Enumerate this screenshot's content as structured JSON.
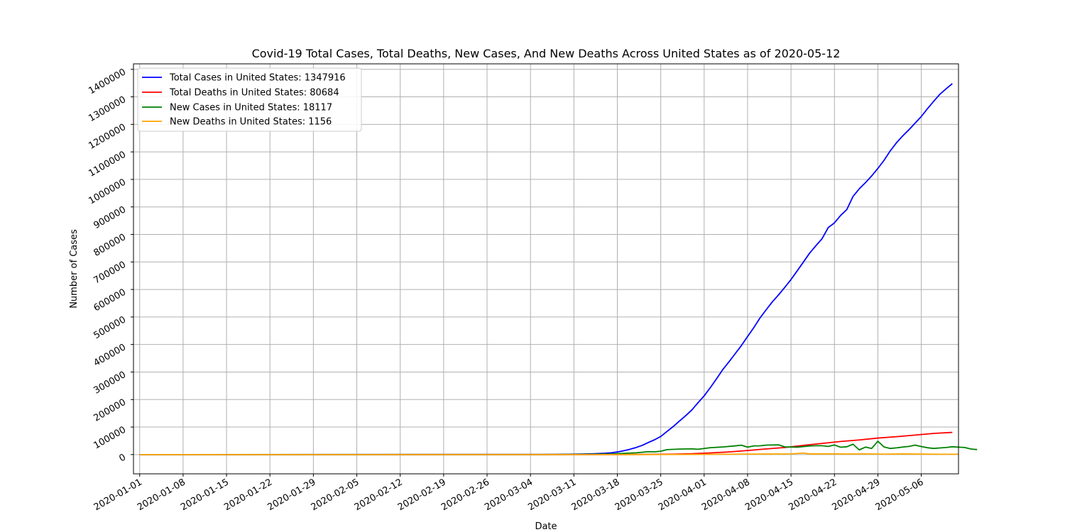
{
  "chart_data": {
    "type": "line",
    "title": "Covid-19 Total Cases, Total Deaths, New Cases, And New Deaths Across United States as of 2020-05-12",
    "xlabel": "Date",
    "ylabel": "Number of Cases",
    "x_start": "2020-01-01",
    "x_end": "2020-05-12",
    "xlim": [
      "2019-12-31",
      "2020-05-12"
    ],
    "ylim": [
      -70000,
      1420000
    ],
    "grid": true,
    "legend_position": "upper-left",
    "x_tick_labels": [
      "2020-01-01",
      "2020-01-08",
      "2020-01-15",
      "2020-01-22",
      "2020-01-29",
      "2020-02-05",
      "2020-02-12",
      "2020-02-19",
      "2020-02-26",
      "2020-03-04",
      "2020-03-11",
      "2020-03-18",
      "2020-03-25",
      "2020-04-01",
      "2020-04-08",
      "2020-04-15",
      "2020-04-22",
      "2020-04-29",
      "2020-05-06"
    ],
    "y_ticks": [
      0,
      100000,
      200000,
      300000,
      400000,
      500000,
      600000,
      700000,
      800000,
      900000,
      1000000,
      1100000,
      1200000,
      1300000,
      1400000
    ],
    "colors": {
      "total_cases": "#0000ff",
      "total_deaths": "#ff0000",
      "new_cases": "#008000",
      "new_deaths": "#ffa500",
      "grid": "#b0b0b0"
    },
    "series": [
      {
        "name": "Total Cases in United States: 1347916",
        "color": "#0000ff",
        "points": [
          [
            "2020-01-01",
            0
          ],
          [
            "2020-03-01",
            75
          ],
          [
            "2020-03-05",
            230
          ],
          [
            "2020-03-08",
            550
          ],
          [
            "2020-03-10",
            1000
          ],
          [
            "2020-03-12",
            1700
          ],
          [
            "2020-03-14",
            2900
          ],
          [
            "2020-03-16",
            4700
          ],
          [
            "2020-03-17",
            6400
          ],
          [
            "2020-03-18",
            9400
          ],
          [
            "2020-03-19",
            13700
          ],
          [
            "2020-03-20",
            19100
          ],
          [
            "2020-03-21",
            25500
          ],
          [
            "2020-03-22",
            33300
          ],
          [
            "2020-03-23",
            43800
          ],
          [
            "2020-03-24",
            53700
          ],
          [
            "2020-03-25",
            65800
          ],
          [
            "2020-03-26",
            83800
          ],
          [
            "2020-03-27",
            101700
          ],
          [
            "2020-03-28",
            121500
          ],
          [
            "2020-03-29",
            140900
          ],
          [
            "2020-03-30",
            161800
          ],
          [
            "2020-03-31",
            188200
          ],
          [
            "2020-04-01",
            213400
          ],
          [
            "2020-04-02",
            243600
          ],
          [
            "2020-04-03",
            275600
          ],
          [
            "2020-04-04",
            308900
          ],
          [
            "2020-04-05",
            337100
          ],
          [
            "2020-04-06",
            366600
          ],
          [
            "2020-04-07",
            396200
          ],
          [
            "2020-04-08",
            429100
          ],
          [
            "2020-04-09",
            461400
          ],
          [
            "2020-04-10",
            496500
          ],
          [
            "2020-04-11",
            526400
          ],
          [
            "2020-04-12",
            555300
          ],
          [
            "2020-04-13",
            580600
          ],
          [
            "2020-04-14",
            607700
          ],
          [
            "2020-04-15",
            636300
          ],
          [
            "2020-04-16",
            667800
          ],
          [
            "2020-04-17",
            699700
          ],
          [
            "2020-04-18",
            732200
          ],
          [
            "2020-04-19",
            758800
          ],
          [
            "2020-04-20",
            784300
          ],
          [
            "2020-04-21",
            825000
          ],
          [
            "2020-04-22",
            842000
          ],
          [
            "2020-04-23",
            869200
          ],
          [
            "2020-04-24",
            890500
          ],
          [
            "2020-04-25",
            938200
          ],
          [
            "2020-04-26",
            965800
          ],
          [
            "2020-04-27",
            988200
          ],
          [
            "2020-04-28",
            1012600
          ],
          [
            "2020-04-29",
            1039900
          ],
          [
            "2020-04-30",
            1069400
          ],
          [
            "2020-05-01",
            1103800
          ],
          [
            "2020-05-02",
            1133100
          ],
          [
            "2020-05-03",
            1158000
          ],
          [
            "2020-05-04",
            1180400
          ],
          [
            "2020-05-05",
            1204400
          ],
          [
            "2020-05-06",
            1228600
          ],
          [
            "2020-05-07",
            1257000
          ],
          [
            "2020-05-08",
            1283900
          ],
          [
            "2020-05-09",
            1309500
          ],
          [
            "2020-05-10",
            1329300
          ],
          [
            "2020-05-11",
            1347900
          ]
        ]
      },
      {
        "name": "Total Deaths in United States: 80684",
        "color": "#ff0000",
        "points": [
          [
            "2020-01-01",
            0
          ],
          [
            "2020-03-10",
            30
          ],
          [
            "2020-03-15",
            70
          ],
          [
            "2020-03-18",
            150
          ],
          [
            "2020-03-21",
            350
          ],
          [
            "2020-03-24",
            780
          ],
          [
            "2020-03-27",
            1600
          ],
          [
            "2020-03-30",
            3000
          ],
          [
            "2020-04-02",
            6000
          ],
          [
            "2020-04-05",
            9600
          ],
          [
            "2020-04-08",
            14700
          ],
          [
            "2020-04-11",
            20600
          ],
          [
            "2020-04-14",
            25800
          ],
          [
            "2020-04-17",
            33300
          ],
          [
            "2020-04-20",
            40600
          ],
          [
            "2020-04-23",
            47600
          ],
          [
            "2020-04-26",
            53200
          ],
          [
            "2020-04-29",
            60000
          ],
          [
            "2020-05-02",
            65000
          ],
          [
            "2020-05-05",
            70800
          ],
          [
            "2020-05-08",
            76900
          ],
          [
            "2020-05-11",
            80700
          ]
        ]
      },
      {
        "name": "New Cases in United States: 18117",
        "color": "#008000",
        "points": [
          [
            "2020-01-01",
            0
          ],
          [
            "2020-03-05",
            100
          ],
          [
            "2020-03-10",
            400
          ],
          [
            "2020-03-14",
            1100
          ],
          [
            "2020-03-17",
            2000
          ],
          [
            "2020-03-19",
            4300
          ],
          [
            "2020-03-21",
            6400
          ],
          [
            "2020-03-23",
            10500
          ],
          [
            "2020-03-24",
            9900
          ],
          [
            "2020-03-25",
            12100
          ],
          [
            "2020-03-26",
            18000
          ],
          [
            "2020-03-28",
            19800
          ],
          [
            "2020-03-30",
            20900
          ],
          [
            "2020-03-31",
            19300
          ],
          [
            "2020-04-02",
            25000
          ],
          [
            "2020-04-04",
            27600
          ],
          [
            "2020-04-06",
            31700
          ],
          [
            "2020-04-07",
            34000
          ],
          [
            "2020-04-08",
            27000
          ],
          [
            "2020-04-09",
            31400
          ],
          [
            "2020-04-10",
            31800
          ],
          [
            "2020-04-11",
            34400
          ],
          [
            "2020-04-13",
            35300
          ],
          [
            "2020-04-14",
            28000
          ],
          [
            "2020-04-16",
            26800
          ],
          [
            "2020-04-17",
            28900
          ],
          [
            "2020-04-18",
            31300
          ],
          [
            "2020-04-19",
            32100
          ],
          [
            "2020-04-20",
            32100
          ],
          [
            "2020-04-21",
            29500
          ],
          [
            "2020-04-22",
            34900
          ],
          [
            "2020-04-23",
            26600
          ],
          [
            "2020-04-24",
            28400
          ],
          [
            "2020-04-25",
            37600
          ],
          [
            "2020-04-26",
            17000
          ],
          [
            "2020-04-27",
            27200
          ],
          [
            "2020-04-28",
            22300
          ],
          [
            "2020-04-29",
            48400
          ],
          [
            "2020-04-30",
            27600
          ],
          [
            "2020-05-01",
            22300
          ],
          [
            "2020-05-02",
            24400
          ],
          [
            "2020-05-03",
            27300
          ],
          [
            "2020-05-04",
            29500
          ],
          [
            "2020-05-05",
            34400
          ],
          [
            "2020-05-06",
            29300
          ],
          [
            "2020-05-07",
            24900
          ],
          [
            "2020-05-08",
            22300
          ],
          [
            "2020-05-09",
            24200
          ],
          [
            "2020-05-10",
            25700
          ],
          [
            "2020-05-11",
            28400
          ],
          [
            "2020-05-12",
            26900
          ],
          [
            "2020-05-13",
            25600
          ],
          [
            "2020-05-14",
            20300
          ],
          [
            "2020-05-15",
            18100
          ]
        ]
      },
      {
        "name": "New Deaths in United States: 1156",
        "color": "#ffa500",
        "points": [
          [
            "2020-01-01",
            0
          ],
          [
            "2020-03-15",
            20
          ],
          [
            "2020-03-20",
            100
          ],
          [
            "2020-03-25",
            250
          ],
          [
            "2020-03-30",
            600
          ],
          [
            "2020-04-04",
            1200
          ],
          [
            "2020-04-08",
            1800
          ],
          [
            "2020-04-12",
            2000
          ],
          [
            "2020-04-15",
            2400
          ],
          [
            "2020-04-17",
            5400
          ],
          [
            "2020-04-18",
            2300
          ],
          [
            "2020-04-21",
            2700
          ],
          [
            "2020-04-24",
            2100
          ],
          [
            "2020-04-27",
            2600
          ],
          [
            "2020-04-30",
            1600
          ],
          [
            "2020-05-03",
            2400
          ],
          [
            "2020-05-06",
            1700
          ],
          [
            "2020-05-09",
            1200
          ],
          [
            "2020-05-12",
            1156
          ]
        ]
      }
    ]
  }
}
